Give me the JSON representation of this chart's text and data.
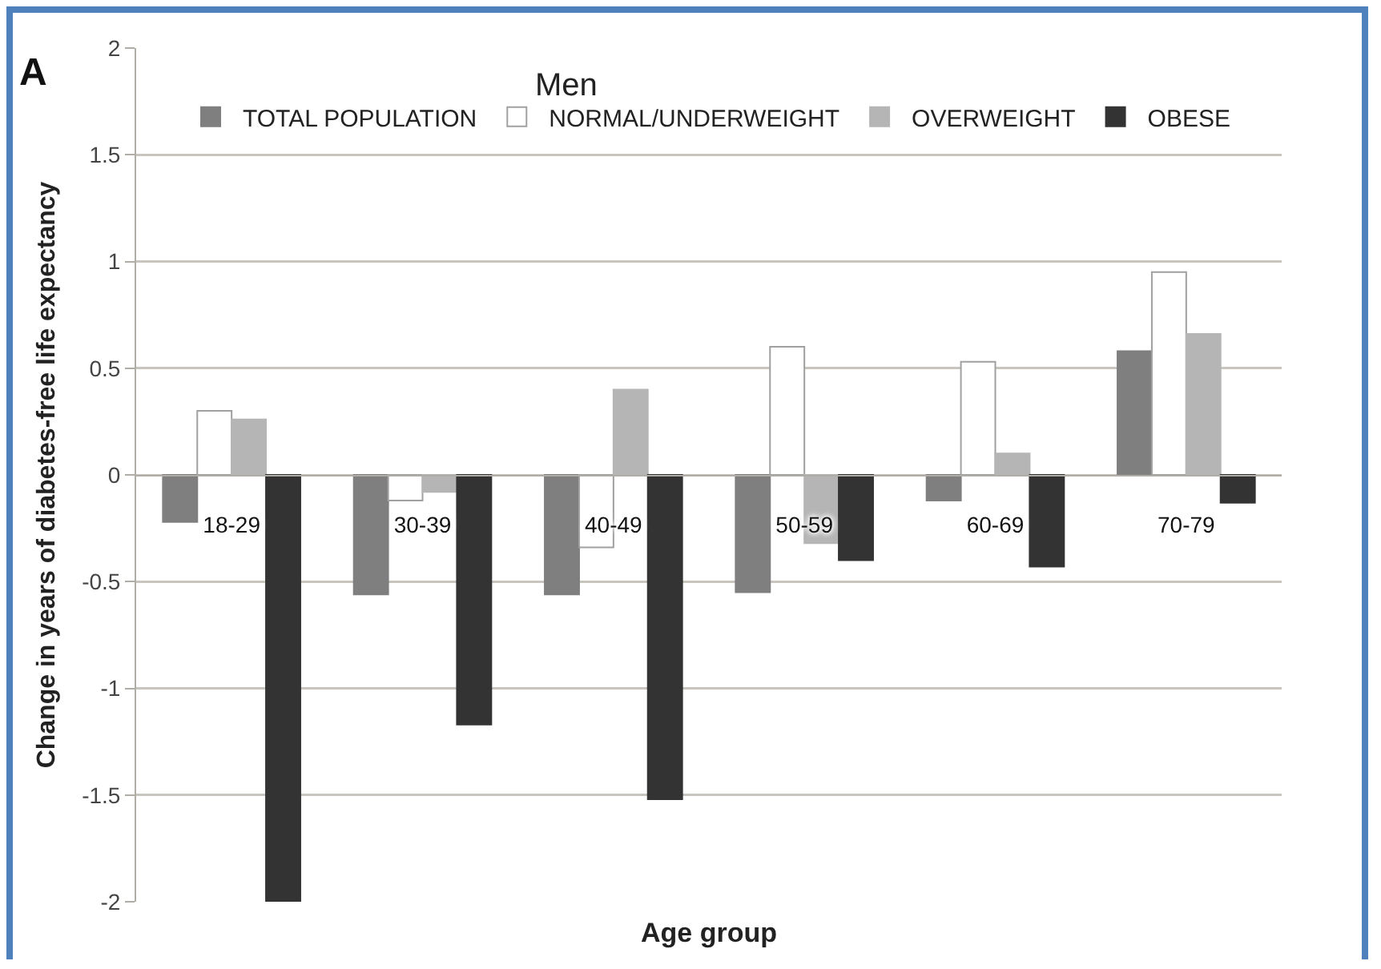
{
  "chart_data": {
    "type": "bar",
    "title": "Men",
    "xlabel": "Age group",
    "ylabel": "Change in years of diabetes-free life expectancy",
    "annotations": [
      "A"
    ],
    "categories": [
      "18-29",
      "30-39",
      "40-49",
      "50-59",
      "60-69",
      "70-79"
    ],
    "series": [
      {
        "name": "TOTAL POPULATION",
        "color": "#7f7f7f",
        "values": [
          -0.22,
          -0.56,
          -0.56,
          -0.55,
          -0.12,
          0.58
        ]
      },
      {
        "name": "NORMAL/UNDERWEIGHT",
        "color": "#ffffff",
        "values": [
          0.3,
          -0.12,
          -0.34,
          0.6,
          0.53,
          0.95
        ]
      },
      {
        "name": "OVERWEIGHT",
        "color": "#b5b5b5",
        "values": [
          0.26,
          -0.08,
          0.4,
          -0.32,
          0.1,
          0.66
        ]
      },
      {
        "name": "OBESE",
        "color": "#333333",
        "values": [
          -2.0,
          -1.17,
          -1.52,
          -0.4,
          -0.43,
          -0.13
        ]
      }
    ],
    "ylim": [
      -2,
      2
    ],
    "yticks": [
      -2,
      -1.5,
      -1,
      -0.5,
      0,
      0.5,
      1,
      1.5,
      2
    ],
    "grid": "y",
    "legend": "top"
  }
}
